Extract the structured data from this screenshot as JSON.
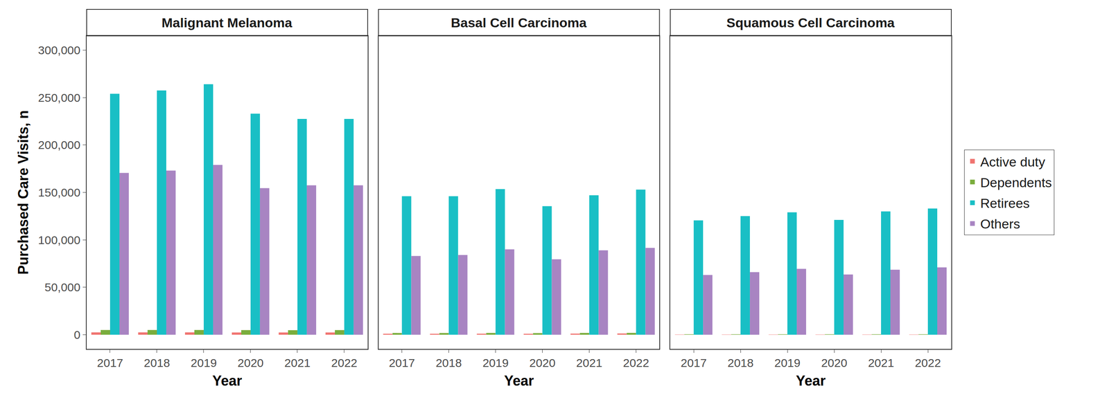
{
  "chart_data": [
    {
      "type": "bar",
      "title": "Malignant Melanoma",
      "x_label": "Year",
      "y_label": "Purchased Care Visits, n",
      "categories": [
        "2017",
        "2018",
        "2019",
        "2020",
        "2021",
        "2022"
      ],
      "series": [
        {
          "name": "Active duty",
          "color": "#F07470",
          "values": [
            2500,
            2500,
            2500,
            2400,
            2400,
            2400
          ]
        },
        {
          "name": "Dependents",
          "color": "#7AAD3C",
          "values": [
            5000,
            5000,
            5000,
            4900,
            4800,
            4900
          ]
        },
        {
          "name": "Retirees",
          "color": "#19BFC5",
          "values": [
            254000,
            257500,
            264000,
            233000,
            227500,
            227500
          ]
        },
        {
          "name": "Others",
          "color": "#A884C2",
          "values": [
            170500,
            173000,
            179000,
            154500,
            157500,
            157500
          ]
        }
      ],
      "ylim": [
        -15000,
        315000
      ],
      "yticks": [
        0,
        {
          "value": 50000,
          "label": "50,000"
        },
        {
          "value": 100000,
          "label": "100,000"
        },
        {
          "value": 150000,
          "label": "150,000"
        },
        {
          "value": 200000,
          "label": "200,000"
        },
        {
          "value": 250000,
          "label": "250,000"
        },
        {
          "value": 300000,
          "label": "300,000"
        }
      ],
      "grid": false,
      "legend": "right"
    },
    {
      "type": "bar",
      "title": "Basal Cell Carcinoma",
      "x_label": "Year",
      "categories": [
        "2017",
        "2018",
        "2019",
        "2020",
        "2021",
        "2022"
      ],
      "series": [
        {
          "name": "Active duty",
          "color": "#F07470",
          "values": [
            1000,
            1000,
            1100,
            1000,
            1200,
            1300
          ]
        },
        {
          "name": "Dependents",
          "color": "#7AAD3C",
          "values": [
            1800,
            1800,
            1900,
            1700,
            1900,
            2000
          ]
        },
        {
          "name": "Retirees",
          "color": "#19BFC5",
          "values": [
            146000,
            146000,
            153500,
            135500,
            147000,
            153000
          ]
        },
        {
          "name": "Others",
          "color": "#A884C2",
          "values": [
            83000,
            84000,
            90000,
            79500,
            89000,
            91500
          ]
        }
      ],
      "ylim": [
        -15000,
        315000
      ],
      "yticks": [
        0,
        {
          "value": 50000,
          "label": "50,000"
        },
        {
          "value": 100000,
          "label": "100,000"
        },
        {
          "value": 150000,
          "label": "150,000"
        },
        {
          "value": 200000,
          "label": "200,000"
        },
        {
          "value": 250000,
          "label": "250,000"
        },
        {
          "value": 300000,
          "label": "300,000"
        }
      ],
      "grid": false,
      "tick_labels": "x"
    },
    {
      "type": "bar",
      "title": "Squamous Cell Carcinoma",
      "x_label": "Year",
      "categories": [
        "2017",
        "2018",
        "2019",
        "2020",
        "2021",
        "2022"
      ],
      "series": [
        {
          "name": "Active duty",
          "color": "#F07470",
          "values": [
            300,
            300,
            300,
            300,
            300,
            300
          ]
        },
        {
          "name": "Dependents",
          "color": "#7AAD3C",
          "values": [
            500,
            500,
            500,
            500,
            500,
            500
          ]
        },
        {
          "name": "Retirees",
          "color": "#19BFC5",
          "values": [
            120500,
            125000,
            129000,
            121000,
            130000,
            133000
          ]
        },
        {
          "name": "Others",
          "color": "#A884C2",
          "values": [
            63000,
            66000,
            69500,
            63500,
            68500,
            71000
          ]
        }
      ],
      "ylim": [
        -15000,
        315000
      ],
      "yticks": [
        0,
        {
          "value": 50000,
          "label": "50,000"
        },
        {
          "value": 100000,
          "label": "100,000"
        },
        {
          "value": 150000,
          "label": "150,000"
        },
        {
          "value": 200000,
          "label": "200,000"
        },
        {
          "value": 250000,
          "label": "250,000"
        },
        {
          "value": 300000,
          "label": "300,000"
        }
      ],
      "grid": false,
      "tick_labels": "x"
    }
  ]
}
